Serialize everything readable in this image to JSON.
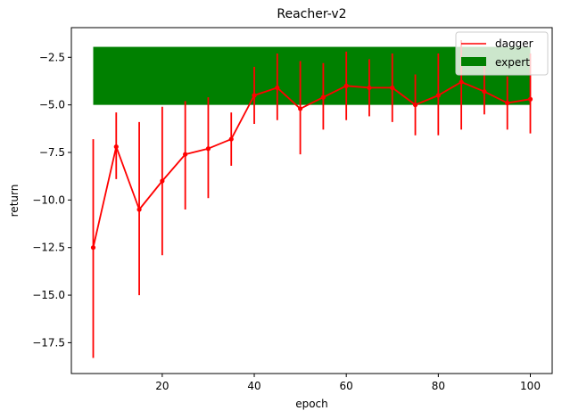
{
  "chart_data": {
    "type": "line",
    "title": "Reacher-v2",
    "xlabel": "epoch",
    "ylabel": "return",
    "xlim": [
      0.25,
      104.75
    ],
    "ylim": [
      -19.12,
      -0.94
    ],
    "xticks": [
      20,
      40,
      60,
      80,
      100
    ],
    "xtick_labels": [
      "20",
      "40",
      "60",
      "80",
      "100"
    ],
    "yticks": [
      -17.5,
      -15.0,
      -12.5,
      -10.0,
      -7.5,
      -5.0,
      -2.5
    ],
    "ytick_labels": [
      "−17.5",
      "−15.0",
      "−12.5",
      "−10.0",
      "−7.5",
      "−5.0",
      "−2.5"
    ],
    "legend_position": "top-right",
    "series": [
      {
        "name": "dagger",
        "color": "#ff0000",
        "x": [
          5,
          10,
          15,
          20,
          25,
          30,
          35,
          40,
          45,
          50,
          55,
          60,
          65,
          70,
          75,
          80,
          85,
          90,
          95,
          100
        ],
        "y": [
          -12.5,
          -7.2,
          -10.5,
          -9.0,
          -7.6,
          -7.3,
          -6.8,
          -4.5,
          -4.1,
          -5.2,
          -4.6,
          -4.0,
          -4.1,
          -4.1,
          -5.0,
          -4.5,
          -3.8,
          -4.3,
          -4.9,
          -4.7
        ],
        "yerr_low": [
          -18.3,
          -8.9,
          -15.0,
          -12.9,
          -10.5,
          -9.9,
          -8.2,
          -6.0,
          -5.8,
          -7.6,
          -6.3,
          -5.8,
          -5.6,
          -5.9,
          -6.6,
          -6.6,
          -6.3,
          -5.5,
          -6.3,
          -6.5
        ],
        "yerr_high": [
          -6.8,
          -5.4,
          -5.9,
          -5.1,
          -4.8,
          -4.6,
          -5.4,
          -3.0,
          -2.3,
          -2.7,
          -2.8,
          -2.2,
          -2.6,
          -2.3,
          -3.4,
          -2.3,
          -1.6,
          -2.8,
          -3.5,
          -2.3
        ]
      },
      {
        "name": "expert",
        "type": "band",
        "color": "#008000",
        "x_range": [
          5,
          100
        ],
        "y_low": -5.0,
        "y_high": -1.95
      }
    ]
  }
}
